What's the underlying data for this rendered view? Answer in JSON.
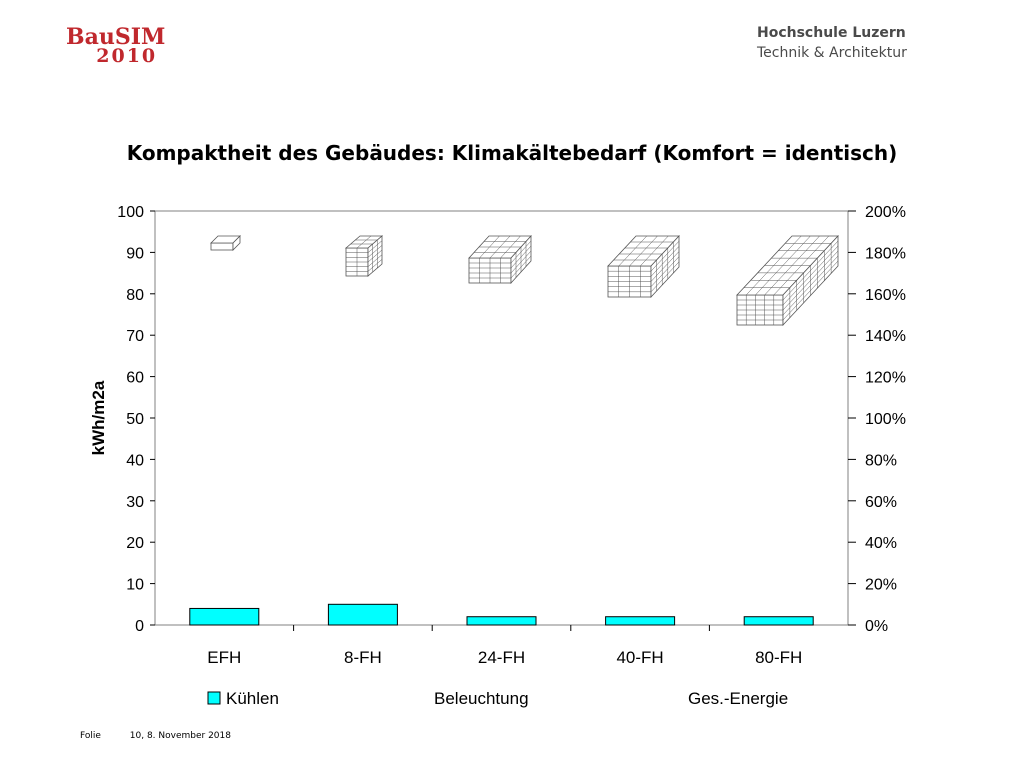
{
  "header": {
    "logo_line1": "BauSIM",
    "logo_line2": "2010",
    "institution_line1": "Hochschule Luzern",
    "institution_line2": "Technik & Architektur"
  },
  "footer": {
    "folie_label": "Folie",
    "page_and_date": "10, 8. November 2018"
  },
  "chart_data": {
    "type": "bar",
    "title": "Kompaktheit des Gebäudes: Klimakältebedarf (Komfort = identisch)",
    "ylabel": "kWh/m2a",
    "xlabel": "",
    "categories": [
      "EFH",
      "8-FH",
      "24-FH",
      "40-FH",
      "80-FH"
    ],
    "series": [
      {
        "name": "Kühlen",
        "values": [
          4,
          5,
          2,
          2,
          2
        ],
        "color": "#00ffff"
      },
      {
        "name": "Beleuchtung",
        "values": [
          0,
          0,
          0,
          0,
          0
        ]
      },
      {
        "name": "Ges.-Energie",
        "values": [
          0,
          0,
          0,
          0,
          0
        ]
      }
    ],
    "ylim": [
      0,
      100
    ],
    "yticks": [
      "0",
      "10",
      "20",
      "30",
      "40",
      "50",
      "60",
      "70",
      "80",
      "90",
      "100"
    ],
    "y2lim": [
      0,
      200
    ],
    "y2ticks": [
      "0%",
      "20%",
      "40%",
      "60%",
      "80%",
      "100%",
      "120%",
      "140%",
      "160%",
      "180%",
      "200%"
    ],
    "grid": false,
    "legend_position": "bottom",
    "bar_outline_color": "#000000",
    "building_icon_color": "#555555"
  }
}
